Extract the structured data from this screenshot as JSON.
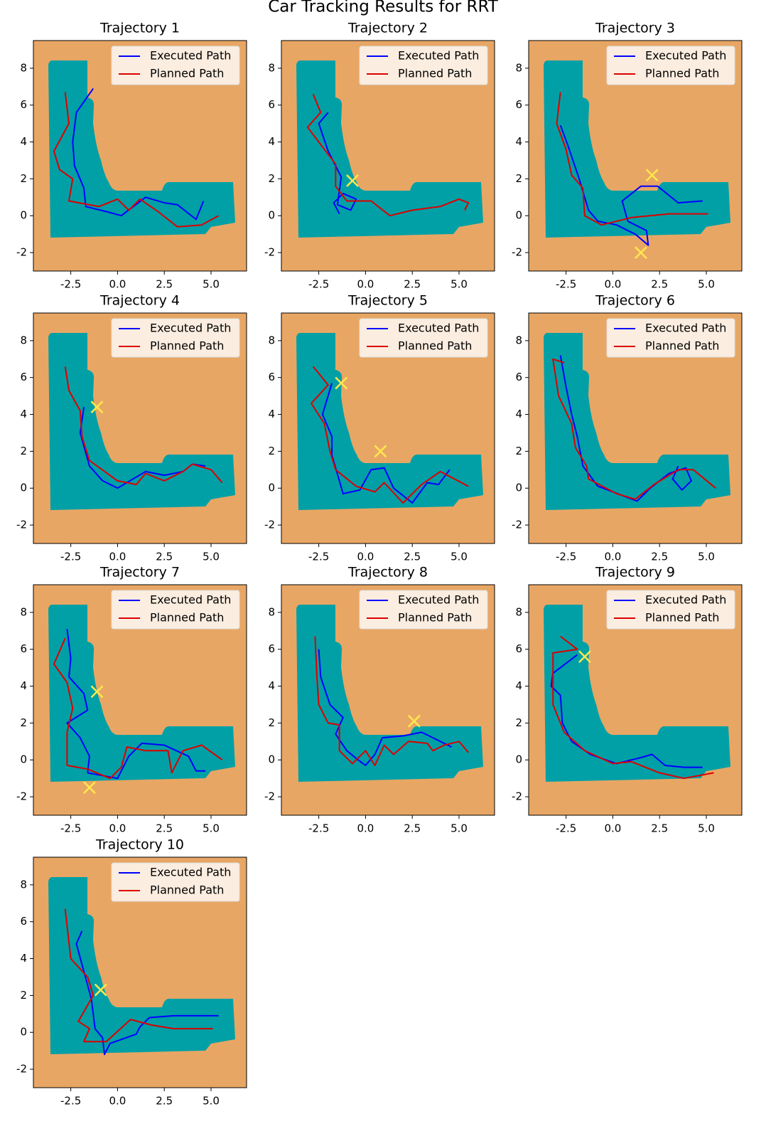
{
  "title": "Car Tracking Results for RRT",
  "chart_data": [
    {
      "type": "line",
      "title": "Trajectory 1",
      "xlim": [
        -4.5,
        6.9
      ],
      "ylim": [
        -3,
        9.5
      ],
      "xticks": [
        -2.5,
        {
          "value": 0,
          "label": "0.0"
        },
        2.5,
        {
          "value": 5,
          "label": "5.0"
        }
      ],
      "yticks": [
        -2,
        0,
        2,
        4,
        6,
        8
      ],
      "legend": "upper right",
      "series": [
        {
          "name": "Executed Path",
          "color": "#0000ff",
          "x": [
            -1.3,
            -2.2,
            -2.4,
            -2.3,
            -1.8,
            -1.7,
            -0.5,
            0.2,
            1.5,
            2.5,
            3.2,
            4.2,
            4.6
          ],
          "y": [
            6.9,
            5.6,
            4.0,
            2.7,
            1.5,
            0.5,
            0.2,
            0.0,
            1.0,
            0.7,
            0.6,
            -0.2,
            0.8
          ]
        },
        {
          "name": "Planned Path",
          "color": "#dd0000",
          "x": [
            -2.8,
            -2.6,
            -3.4,
            -3.1,
            -2.4,
            -2.6,
            -1.0,
            0.0,
            0.6,
            1.2,
            2.2,
            3.2,
            4.5,
            5.4
          ],
          "y": [
            6.7,
            5.0,
            3.5,
            2.5,
            2.0,
            0.8,
            0.5,
            0.9,
            0.3,
            0.9,
            0.2,
            -0.6,
            -0.5,
            0.0
          ]
        }
      ],
      "markers": {
        "color": "#ffe84d",
        "x": [],
        "y": []
      }
    },
    {
      "type": "line",
      "title": "Trajectory 2",
      "xlim": [
        -4.5,
        6.9
      ],
      "ylim": [
        -3,
        9.5
      ],
      "xticks": [
        -2.5,
        {
          "value": 0,
          "label": "0.0"
        },
        2.5,
        {
          "value": 5,
          "label": "5.0"
        }
      ],
      "yticks": [
        -2,
        0,
        2,
        4,
        6,
        8
      ],
      "legend": "upper right",
      "series": [
        {
          "name": "Executed Path",
          "color": "#0000ff",
          "x": [
            -2.0,
            -2.5,
            -2.0,
            -1.3,
            -1.5,
            -0.8,
            -0.5,
            -1.2,
            -1.7,
            -1.4
          ],
          "y": [
            5.6,
            5.0,
            3.5,
            2.1,
            0.6,
            0.3,
            0.9,
            1.2,
            0.7,
            0.1
          ]
        },
        {
          "name": "Planned Path",
          "color": "#dd0000",
          "x": [
            -2.8,
            -2.4,
            -3.1,
            -2.5,
            -1.6,
            -1.6,
            -1.0,
            0.3,
            1.3,
            2.5,
            4.0,
            5.0,
            5.5,
            5.3
          ],
          "y": [
            6.6,
            5.6,
            4.8,
            4.0,
            2.8,
            1.6,
            0.8,
            0.8,
            0.0,
            0.3,
            0.5,
            0.9,
            0.7,
            0.3
          ]
        }
      ],
      "markers": {
        "color": "#ffe84d",
        "x": [
          -0.7
        ],
        "y": [
          1.9
        ]
      }
    },
    {
      "type": "line",
      "title": "Trajectory 3",
      "xlim": [
        -4.5,
        6.9
      ],
      "ylim": [
        -3,
        9.5
      ],
      "xticks": [
        -2.5,
        {
          "value": 0,
          "label": "0.0"
        },
        2.5,
        {
          "value": 5,
          "label": "5.0"
        }
      ],
      "yticks": [
        -2,
        0,
        2,
        4,
        6,
        8
      ],
      "legend": "upper right",
      "series": [
        {
          "name": "Executed Path",
          "color": "#0000ff",
          "x": [
            -2.8,
            -2.4,
            -1.8,
            -1.3,
            -0.8,
            0.2,
            1.2,
            1.9,
            1.8,
            0.8,
            0.5,
            1.5,
            2.4,
            3.5,
            4.8
          ],
          "y": [
            4.9,
            3.8,
            2.0,
            0.3,
            -0.3,
            -0.5,
            -1.0,
            -1.6,
            -0.8,
            -0.3,
            0.8,
            1.6,
            1.6,
            0.7,
            0.8
          ]
        },
        {
          "name": "Planned Path",
          "color": "#dd0000",
          "x": [
            -2.8,
            -3.0,
            -2.5,
            -2.2,
            -1.6,
            -1.5,
            -0.6,
            1.0,
            3.0,
            5.1
          ],
          "y": [
            6.7,
            5.0,
            3.6,
            2.2,
            1.5,
            0.0,
            -0.5,
            -0.1,
            0.1,
            0.1
          ]
        }
      ],
      "markers": {
        "color": "#ffe84d",
        "x": [
          2.1,
          1.5
        ],
        "y": [
          2.2,
          -2.0
        ]
      }
    },
    {
      "type": "line",
      "title": "Trajectory 4",
      "xlim": [
        -4.5,
        6.9
      ],
      "ylim": [
        -3,
        9.5
      ],
      "xticks": [
        -2.5,
        {
          "value": 0,
          "label": "0.0"
        },
        2.5,
        {
          "value": 5,
          "label": "5.0"
        }
      ],
      "yticks": [
        -2,
        0,
        2,
        4,
        6,
        8
      ],
      "legend": "upper right",
      "series": [
        {
          "name": "Executed Path",
          "color": "#0000ff",
          "x": [
            -1.8,
            -2.0,
            -1.5,
            -0.8,
            0.0,
            1.0,
            1.5,
            2.5,
            3.5,
            4.0,
            4.7
          ],
          "y": [
            4.4,
            3.0,
            1.2,
            0.4,
            0.0,
            0.6,
            0.9,
            0.7,
            0.9,
            1.3,
            1.2
          ]
        },
        {
          "name": "Planned Path",
          "color": "#dd0000",
          "x": [
            -2.8,
            -2.6,
            -2.0,
            -1.9,
            -1.5,
            0.0,
            1.0,
            1.5,
            2.5,
            3.5,
            4.0,
            5.0,
            5.6
          ],
          "y": [
            6.6,
            5.3,
            4.2,
            2.8,
            1.5,
            0.4,
            0.2,
            0.8,
            0.4,
            0.9,
            1.3,
            1.0,
            0.3
          ]
        }
      ],
      "markers": {
        "color": "#ffe84d",
        "x": [
          -1.1
        ],
        "y": [
          4.4
        ]
      }
    },
    {
      "type": "line",
      "title": "Trajectory 5",
      "xlim": [
        -4.5,
        6.9
      ],
      "ylim": [
        -3,
        9.5
      ],
      "xticks": [
        -2.5,
        {
          "value": 0,
          "label": "0.0"
        },
        2.5,
        {
          "value": 5,
          "label": "5.0"
        }
      ],
      "yticks": [
        -2,
        0,
        2,
        4,
        6,
        8
      ],
      "legend": "upper right",
      "series": [
        {
          "name": "Executed Path",
          "color": "#0000ff",
          "x": [
            -1.8,
            -2.3,
            -1.8,
            -1.8,
            -1.2,
            -0.3,
            0.3,
            1.0,
            1.5,
            2.5,
            3.3,
            3.9,
            4.5
          ],
          "y": [
            5.7,
            4.0,
            2.8,
            1.8,
            -0.3,
            -0.1,
            1.0,
            1.1,
            0.0,
            -0.8,
            0.3,
            0.2,
            1.0
          ]
        },
        {
          "name": "Planned Path",
          "color": "#dd0000",
          "x": [
            -2.8,
            -2.0,
            -2.9,
            -2.2,
            -1.9,
            -1.6,
            -0.5,
            0.5,
            1.0,
            2.0,
            3.0,
            4.0,
            5.5
          ],
          "y": [
            6.6,
            5.6,
            4.6,
            3.5,
            2.0,
            1.0,
            0.1,
            -0.2,
            0.3,
            -0.8,
            0.2,
            0.9,
            0.1
          ]
        }
      ],
      "markers": {
        "color": "#ffe84d",
        "x": [
          -1.3,
          0.8
        ],
        "y": [
          5.7,
          2.0
        ]
      }
    },
    {
      "type": "line",
      "title": "Trajectory 6",
      "xlim": [
        -4.5,
        6.9
      ],
      "ylim": [
        -3,
        9.5
      ],
      "xticks": [
        -2.5,
        {
          "value": 0,
          "label": "0.0"
        },
        2.5,
        {
          "value": 5,
          "label": "5.0"
        }
      ],
      "yticks": [
        -2,
        0,
        2,
        4,
        6,
        8
      ],
      "legend": "upper right",
      "series": [
        {
          "name": "Executed Path",
          "color": "#0000ff",
          "x": [
            -2.8,
            -2.5,
            -2.2,
            -1.9,
            -1.6,
            -0.8,
            0.0,
            1.3,
            2.0,
            3.0,
            3.9,
            4.2,
            3.7,
            3.2,
            3.5
          ],
          "y": [
            7.2,
            5.5,
            4.0,
            2.8,
            1.2,
            0.1,
            -0.2,
            -0.7,
            0.0,
            0.8,
            1.1,
            0.4,
            -0.1,
            0.5,
            1.2
          ]
        },
        {
          "name": "Planned Path",
          "color": "#dd0000",
          "x": [
            -2.6,
            -3.2,
            -2.9,
            -2.2,
            -2.0,
            -1.4,
            -1.3,
            0.2,
            1.2,
            2.2,
            3.5,
            4.3,
            5.5
          ],
          "y": [
            6.8,
            7.0,
            5.0,
            3.5,
            2.2,
            1.2,
            0.5,
            -0.3,
            -0.6,
            0.2,
            1.0,
            1.0,
            0.0
          ]
        }
      ],
      "markers": {
        "color": "#ffe84d",
        "x": [],
        "y": []
      }
    },
    {
      "type": "line",
      "title": "Trajectory 7",
      "xlim": [
        -4.5,
        6.9
      ],
      "ylim": [
        -3,
        9.5
      ],
      "xticks": [
        -2.5,
        {
          "value": 0,
          "label": "0.0"
        },
        2.5,
        {
          "value": 5,
          "label": "5.0"
        }
      ],
      "yticks": [
        -2,
        0,
        2,
        4,
        6,
        8
      ],
      "legend": "upper right",
      "series": [
        {
          "name": "Executed Path",
          "color": "#0000ff",
          "x": [
            -2.7,
            -2.5,
            -2.6,
            -1.8,
            -1.6,
            -2.7,
            -2.0,
            -1.5,
            -1.6,
            0.0,
            0.6,
            1.3,
            2.5,
            3.8,
            4.2,
            4.7
          ],
          "y": [
            7.1,
            5.5,
            4.5,
            3.6,
            2.7,
            2.0,
            1.2,
            0.2,
            -0.7,
            -1.0,
            0.2,
            0.9,
            0.8,
            0.2,
            -0.6,
            -0.6
          ]
        },
        {
          "name": "Planned Path",
          "color": "#dd0000",
          "x": [
            -2.8,
            -3.4,
            -2.7,
            -2.4,
            -2.7,
            -2.7,
            -1.6,
            -0.4,
            0.2,
            0.5,
            1.5,
            2.7,
            2.9,
            3.5,
            4.5,
            5.6
          ],
          "y": [
            6.6,
            5.2,
            4.2,
            2.8,
            1.5,
            -0.3,
            -0.5,
            -1.0,
            -0.4,
            0.7,
            0.5,
            0.5,
            -0.7,
            0.5,
            0.8,
            0.0
          ]
        }
      ],
      "markers": {
        "color": "#ffe84d",
        "x": [
          -1.1,
          -1.5
        ],
        "y": [
          3.7,
          -1.5
        ]
      }
    },
    {
      "type": "line",
      "title": "Trajectory 8",
      "xlim": [
        -4.5,
        6.9
      ],
      "ylim": [
        -3,
        9.5
      ],
      "xticks": [
        -2.5,
        {
          "value": 0,
          "label": "0.0"
        },
        2.5,
        {
          "value": 5,
          "label": "5.0"
        }
      ],
      "yticks": [
        -2,
        0,
        2,
        4,
        6,
        8
      ],
      "legend": "upper right",
      "series": [
        {
          "name": "Executed Path",
          "color": "#0000ff",
          "x": [
            -2.5,
            -2.4,
            -1.9,
            -1.2,
            -1.6,
            -1.0,
            -0.4,
            0.0,
            0.5,
            0.9,
            2.0,
            3.0,
            3.6,
            4.6
          ],
          "y": [
            6.0,
            4.5,
            3.0,
            2.3,
            1.4,
            0.5,
            0.0,
            -0.3,
            0.3,
            1.2,
            1.3,
            1.5,
            1.2,
            0.7
          ]
        },
        {
          "name": "Planned Path",
          "color": "#dd0000",
          "x": [
            -2.7,
            -2.6,
            -2.5,
            -2.0,
            -1.4,
            -1.4,
            -0.7,
            0.0,
            0.5,
            1.0,
            1.5,
            2.3,
            3.3,
            3.6,
            4.2,
            5.0,
            5.5
          ],
          "y": [
            6.7,
            4.5,
            3.0,
            2.0,
            1.9,
            0.5,
            -0.2,
            0.5,
            -0.3,
            0.8,
            0.3,
            1.0,
            0.9,
            0.5,
            0.8,
            1.0,
            0.4
          ]
        }
      ],
      "markers": {
        "color": "#ffe84d",
        "x": [
          2.6
        ],
        "y": [
          2.1
        ]
      }
    },
    {
      "type": "line",
      "title": "Trajectory 9",
      "xlim": [
        -4.5,
        6.9
      ],
      "ylim": [
        -3,
        9.5
      ],
      "xticks": [
        -2.5,
        {
          "value": 0,
          "label": "0.0"
        },
        2.5,
        {
          "value": 5,
          "label": "5.0"
        }
      ],
      "yticks": [
        -2,
        0,
        2,
        4,
        6,
        8
      ],
      "legend": "upper right",
      "series": [
        {
          "name": "Executed Path",
          "color": "#0000ff",
          "x": [
            -1.9,
            -3.2,
            -3.3,
            -2.8,
            -2.7,
            -2.2,
            -1.2,
            0.2,
            1.4,
            2.1,
            2.8,
            3.8,
            4.8
          ],
          "y": [
            5.7,
            4.7,
            4.0,
            3.5,
            2.0,
            1.0,
            0.3,
            -0.2,
            0.1,
            0.3,
            -0.3,
            -0.4,
            -0.4
          ]
        },
        {
          "name": "Planned Path",
          "color": "#dd0000",
          "x": [
            -2.8,
            -1.9,
            -3.2,
            -3.2,
            -2.6,
            -1.5,
            0.0,
            1.0,
            2.5,
            3.8,
            5.4
          ],
          "y": [
            6.7,
            6.0,
            5.8,
            3.0,
            1.5,
            0.5,
            -0.2,
            -0.1,
            -0.7,
            -1.0,
            -0.7
          ]
        }
      ],
      "markers": {
        "color": "#ffe84d",
        "x": [
          -1.5
        ],
        "y": [
          5.6
        ]
      }
    },
    {
      "type": "line",
      "title": "Trajectory 10",
      "xlim": [
        -4.5,
        6.9
      ],
      "ylim": [
        -3,
        9.5
      ],
      "xticks": [
        -2.5,
        {
          "value": 0,
          "label": "0.0"
        },
        2.5,
        {
          "value": 5,
          "label": "5.0"
        }
      ],
      "yticks": [
        -2,
        0,
        2,
        4,
        6,
        8
      ],
      "legend": "upper right",
      "series": [
        {
          "name": "Executed Path",
          "color": "#0000ff",
          "x": [
            -1.9,
            -2.2,
            -1.8,
            -1.4,
            -1.2,
            -0.8,
            -0.7,
            -0.4,
            1.0,
            1.2,
            1.7,
            3.0,
            5.4
          ],
          "y": [
            5.5,
            4.8,
            3.3,
            1.8,
            0.2,
            -0.3,
            -1.2,
            -0.6,
            -0.1,
            0.3,
            0.8,
            0.9,
            0.9
          ]
        },
        {
          "name": "Planned Path",
          "color": "#dd0000",
          "x": [
            -2.8,
            -2.5,
            -1.6,
            -1.3,
            -2.1,
            -1.5,
            -1.8,
            -0.6,
            0.7,
            1.8,
            3.0,
            5.1
          ],
          "y": [
            6.7,
            4.0,
            3.0,
            2.0,
            0.6,
            0.2,
            -0.5,
            -0.5,
            0.7,
            0.4,
            0.2,
            0.2
          ]
        }
      ],
      "markers": {
        "color": "#ffe84d",
        "x": [
          -0.9
        ],
        "y": [
          2.3
        ]
      }
    }
  ]
}
